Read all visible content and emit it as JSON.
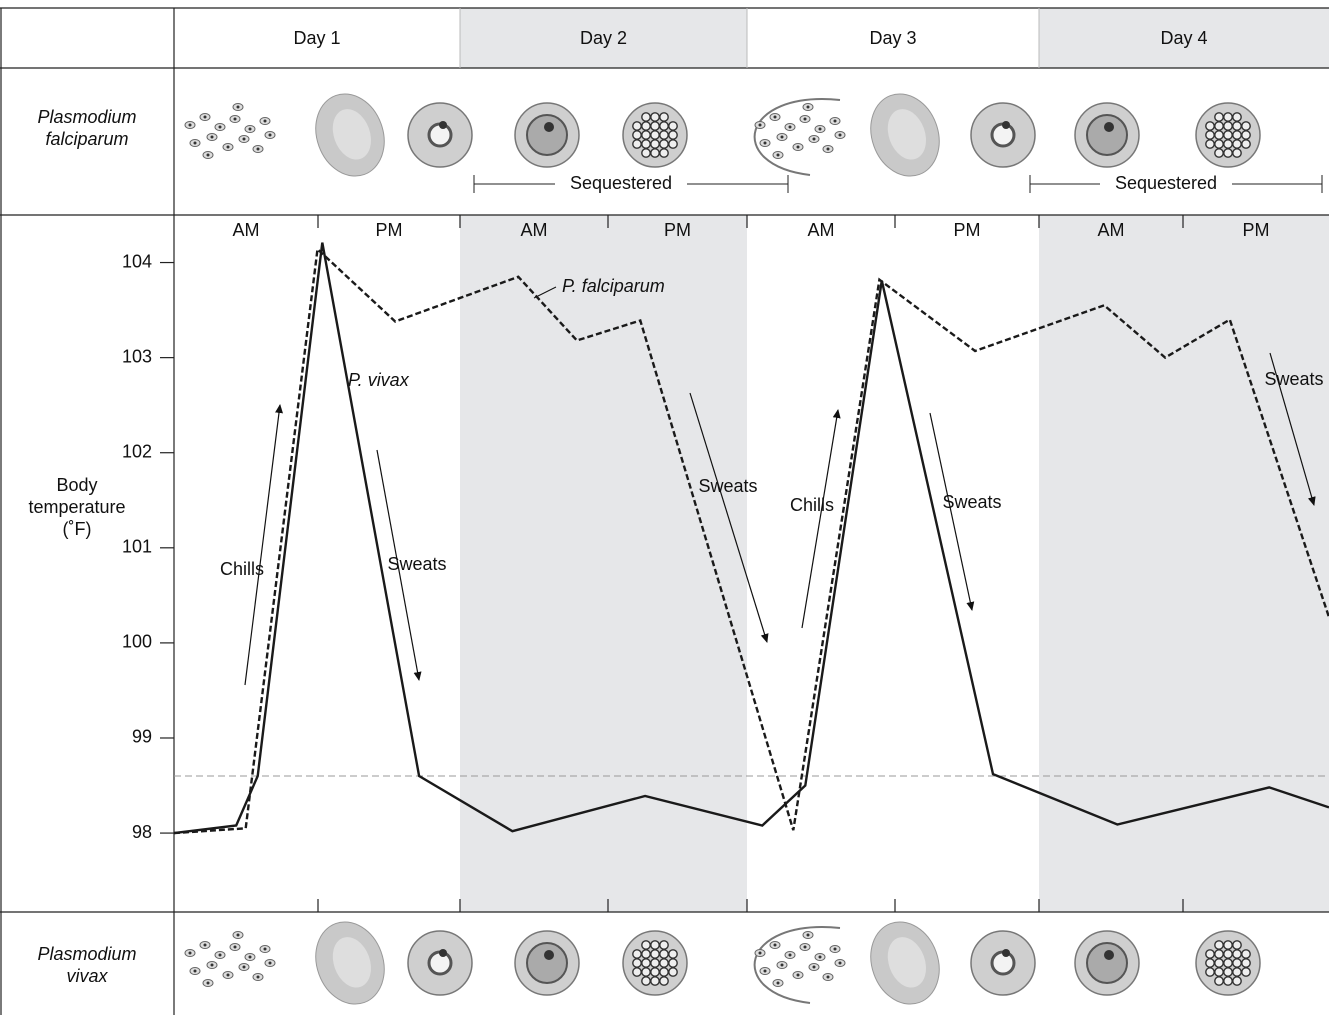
{
  "chart_data": {
    "type": "line",
    "days": [
      "Day 1",
      "Day 2",
      "Day 3",
      "Day 4"
    ],
    "periods": [
      "AM",
      "PM",
      "AM",
      "PM",
      "AM",
      "PM",
      "AM",
      "PM"
    ],
    "top_row_label": [
      "Plasmodium",
      "falciparum"
    ],
    "bottom_row_label": [
      "Plasmodium",
      "vivax"
    ],
    "sequestered": [
      "Sequestered",
      "Sequestered"
    ],
    "ylabel": [
      "Body",
      "temperature",
      "(˚F)"
    ],
    "xlim": [
      0,
      96.6
    ],
    "ylim": [
      97.17,
      104.5
    ],
    "yticks": [
      98,
      99,
      100,
      101,
      102,
      103,
      104
    ],
    "reference_line": 98.6,
    "annotations": [
      "P. falciparum",
      "P. vivax",
      "Chills",
      "Sweats",
      "Sweats",
      "Chills",
      "Sweats",
      "Sweats"
    ],
    "series": [
      {
        "name": "P. vivax",
        "color": "#1a1a1a",
        "line_style": "solid",
        "x": [
          0,
          5.2,
          7.0,
          12.4,
          20.5,
          28.3,
          39.4,
          49.2,
          52.8,
          59.2,
          68.5,
          78.9,
          91.6,
          96.6
        ],
        "values": [
          98.0,
          98.08,
          98.6,
          104.21,
          98.6,
          98.02,
          98.39,
          98.08,
          98.5,
          103.81,
          98.62,
          98.09,
          98.48,
          98.27
        ]
      },
      {
        "name": "P. falciparum",
        "color": "#1a1a1a",
        "line_style": "dashed",
        "x": [
          0,
          6.0,
          12.0,
          18.5,
          28.8,
          33.7,
          39.0,
          51.8,
          59.0,
          67.0,
          77.8,
          82.9,
          88.3,
          96.6
        ],
        "values": [
          98.0,
          98.05,
          104.14,
          103.38,
          103.85,
          103.18,
          103.39,
          98.03,
          103.82,
          103.07,
          103.55,
          103.0,
          103.4,
          100.27
        ]
      }
    ]
  }
}
